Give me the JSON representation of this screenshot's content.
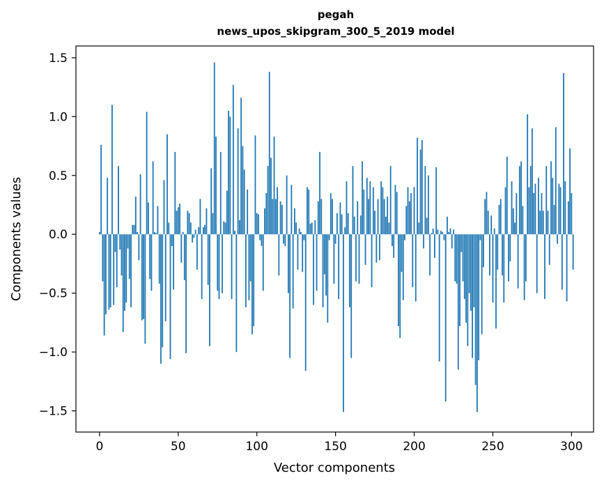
{
  "chart_data": {
    "type": "bar",
    "title": "pegah",
    "subtitle": "news_upos_skipgram_300_5_2019 model",
    "xlabel": "Vector components",
    "ylabel": "Components values",
    "xlim": [
      -15,
      314
    ],
    "ylim": [
      -1.68,
      1.6
    ],
    "xticks": [
      0,
      50,
      100,
      150,
      200,
      250,
      300
    ],
    "xtick_labels": [
      "0",
      "50",
      "100",
      "150",
      "200",
      "250",
      "300"
    ],
    "yticks": [
      -1.5,
      -1.0,
      -0.5,
      0.0,
      0.5,
      1.0,
      1.5
    ],
    "ytick_labels": [
      "−1.5",
      "−1.0",
      "−0.5",
      "0.0",
      "0.5",
      "1.0",
      "1.5"
    ],
    "bar_color": "#1f77b4",
    "values": [
      0.02,
      0.76,
      -0.4,
      -0.86,
      -0.68,
      0.48,
      -0.64,
      -0.62,
      1.1,
      -0.6,
      -0.15,
      -0.45,
      0.58,
      -0.13,
      -0.35,
      -0.83,
      -0.65,
      -0.58,
      -0.12,
      -0.38,
      -0.62,
      0.08,
      0.08,
      0.32,
      0.02,
      -0.22,
      0.51,
      -0.73,
      -0.72,
      -0.93,
      1.04,
      0.27,
      -0.38,
      -0.48,
      0.62,
      0.02,
      0.01,
      0.24,
      -0.42,
      -1.1,
      -0.96,
      0.46,
      -0.74,
      0.85,
      0.1,
      -1.06,
      -0.1,
      -0.47,
      0.7,
      0.2,
      0.23,
      0.26,
      -0.24,
      0.02,
      -0.39,
      -1.01,
      0.2,
      0.18,
      0.1,
      -0.07,
      -0.03,
      0.04,
      -0.3,
      0.06,
      0.3,
      -0.55,
      0.06,
      0.08,
      0.22,
      -0.43,
      -0.95,
      0.56,
      0.18,
      1.46,
      0.83,
      -0.48,
      -0.55,
      0.7,
      -0.5,
      0.11,
      0.1,
      0.37,
      1.05,
      1.0,
      -0.55,
      1.27,
      0.03,
      -1.0,
      0.9,
      0.12,
      1.16,
      0.75,
      0.55,
      -0.62,
      0.38,
      -0.56,
      -0.4,
      -0.85,
      -0.78,
      0.84,
      0.18,
      0.17,
      -0.05,
      -0.1,
      -0.48,
      0.22,
      0.35,
      0.58,
      1.38,
      0.65,
      0.3,
      0.83,
      0.3,
      0.4,
      -0.35,
      0.28,
      0.25,
      -0.08,
      -0.1,
      0.5,
      -0.5,
      -1.05,
      0.42,
      -0.63,
      0.22,
      0.1,
      -0.3,
      0.05,
      0.02,
      -0.32,
      -0.05,
      -1.16,
      0.4,
      0.38,
      0.09,
      0.1,
      -0.6,
      0.12,
      -0.48,
      0.28,
      0.7,
      0.3,
      -0.62,
      -0.34,
      -0.52,
      -0.75,
      -0.05,
      0.35,
      0.3,
      -0.42,
      -0.08,
      0.18,
      -0.55,
      0.27,
      0.17,
      -1.51,
      0.06,
      0.45,
      0.18,
      -0.62,
      -1.05,
      0.58,
      0.15,
      -0.4,
      0.28,
      -0.42,
      0.16,
      0.62,
      0.38,
      -0.26,
      0.48,
      0.3,
      0.45,
      -0.45,
      0.4,
      0.2,
      -0.24,
      0.3,
      -0.22,
      0.45,
      0.4,
      0.3,
      0.15,
      0.32,
      0.1,
      0.58,
      -0.1,
      -0.2,
      0.42,
      0.36,
      -0.78,
      -0.88,
      -0.32,
      -0.56,
      -0.05,
      0.24,
      0.4,
      0.28,
      0.35,
      -0.45,
      0.4,
      -0.57,
      0.82,
      0.1,
      0.72,
      0.8,
      -0.12,
      0.58,
      0.14,
      0.5,
      -0.35,
      0.01,
      0.05,
      -0.2,
      0.57,
      0.04,
      -1.08,
      0.03,
      0.02,
      -0.05,
      -1.42,
      0.15,
      0.02,
      0.05,
      -0.12,
      0.04,
      -0.4,
      -0.42,
      -1.15,
      -0.78,
      -0.15,
      -0.4,
      -0.55,
      -0.75,
      -0.95,
      -0.5,
      -0.65,
      -1.05,
      -0.62,
      -1.28,
      -1.51,
      -1.07,
      -0.05,
      -0.85,
      -0.28,
      0.3,
      0.36,
      0.2,
      -0.35,
      0.16,
      -0.58,
      0.05,
      -0.8,
      -0.3,
      0.25,
      0.3,
      -0.35,
      -0.58,
      0.4,
      0.66,
      -0.4,
      -0.23,
      0.45,
      0.22,
      0.1,
      0.35,
      -0.46,
      0.58,
      0.62,
      0.24,
      -0.56,
      -0.4,
      1.02,
      0.4,
      0.58,
      0.9,
      0.35,
      0.43,
      -0.5,
      0.48,
      0.2,
      0.35,
      0.2,
      -0.55,
      0.58,
      0.2,
      -0.26,
      0.62,
      0.48,
      0.25,
      0.91,
      -0.08,
      0.43,
      0.4,
      -0.47,
      1.37,
      0.45,
      -0.57,
      0.28,
      0.73,
      0.35,
      -0.3
    ]
  }
}
